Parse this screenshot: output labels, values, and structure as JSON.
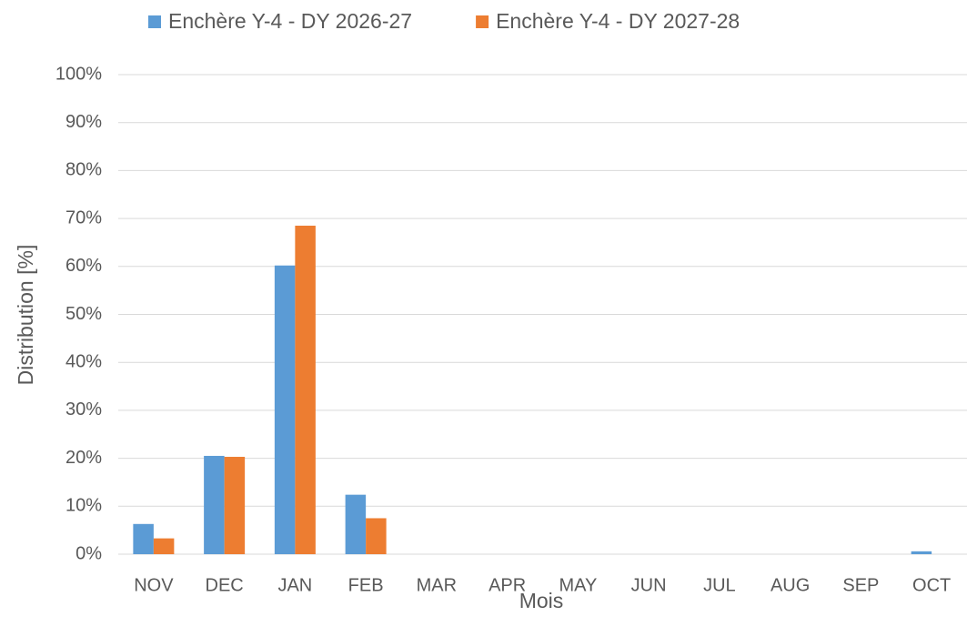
{
  "chart_data": {
    "type": "bar",
    "categories": [
      "NOV",
      "DEC",
      "JAN",
      "FEB",
      "MAR",
      "APR",
      "MAY",
      "JUN",
      "JUL",
      "AUG",
      "SEP",
      "OCT"
    ],
    "series": [
      {
        "name": "Enchère Y-4 - DY 2026-27",
        "color": "#5b9bd5",
        "values": [
          6.3,
          20.5,
          60.2,
          12.4,
          0,
          0,
          0,
          0,
          0,
          0,
          0,
          0.6
        ]
      },
      {
        "name": "Enchère Y-4 - DY 2027-28",
        "color": "#ed7d31",
        "values": [
          3.3,
          20.3,
          68.5,
          7.5,
          0,
          0,
          0,
          0,
          0,
          0,
          0,
          0
        ]
      }
    ],
    "xlabel": "Mois",
    "ylabel": "Distribution [%]",
    "ylim": [
      0,
      100
    ],
    "yticks": [
      {
        "value": 0,
        "label": "0%"
      },
      {
        "value": 10,
        "label": "10%"
      },
      {
        "value": 20,
        "label": "20%"
      },
      {
        "value": 30,
        "label": "30%"
      },
      {
        "value": 40,
        "label": "40%"
      },
      {
        "value": 50,
        "label": "50%"
      },
      {
        "value": 60,
        "label": "60%"
      },
      {
        "value": 70,
        "label": "70%"
      },
      {
        "value": 80,
        "label": "80%"
      },
      {
        "value": 90,
        "label": "90%"
      },
      {
        "value": 100,
        "label": "100%"
      }
    ],
    "grid": true,
    "legend": "top"
  }
}
